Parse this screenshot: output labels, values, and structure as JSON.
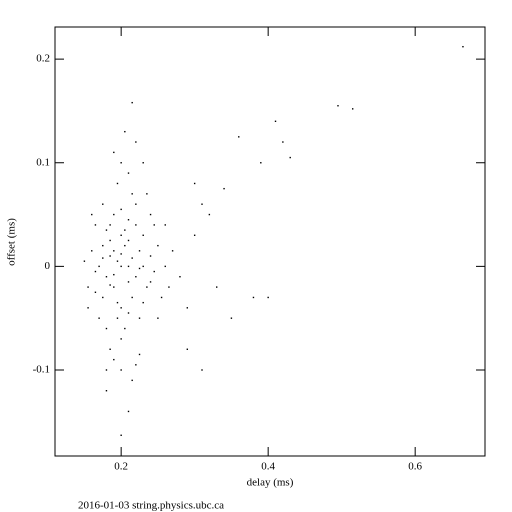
{
  "chart_data": {
    "type": "scatter",
    "xlabel": "delay (ms)",
    "ylabel": "offset (ms)",
    "footer": "2016-01-03 string.physics.ubc.ca",
    "color": "#000000",
    "xlim": [
      0.11,
      0.695
    ],
    "ylim": [
      -0.183,
      0.231
    ],
    "xticks": [
      0.2,
      0.4,
      0.6
    ],
    "yticks": [
      -0.1,
      0,
      0.1,
      0.2
    ],
    "x": [
      0.185,
      0.19,
      0.2,
      0.21,
      0.22,
      0.205,
      0.215,
      0.195,
      0.225,
      0.18,
      0.17,
      0.175,
      0.165,
      0.23,
      0.235,
      0.24,
      0.245,
      0.25,
      0.2,
      0.21,
      0.19,
      0.22,
      0.205,
      0.215,
      0.2,
      0.185,
      0.225,
      0.195,
      0.21,
      0.23,
      0.18,
      0.175,
      0.16,
      0.155,
      0.15,
      0.255,
      0.26,
      0.27,
      0.28,
      0.195,
      0.21,
      0.2,
      0.22,
      0.205,
      0.19,
      0.2,
      0.215,
      0.185,
      0.225,
      0.175,
      0.24,
      0.245,
      0.235,
      0.17,
      0.165,
      0.18,
      0.25,
      0.19,
      0.2,
      0.21,
      0.2,
      0.19,
      0.215,
      0.225,
      0.185,
      0.205,
      0.195,
      0.23,
      0.175,
      0.24,
      0.165,
      0.2,
      0.21,
      0.185,
      0.22,
      0.19,
      0.23,
      0.18,
      0.22,
      0.16,
      0.155,
      0.26,
      0.265,
      0.3,
      0.32,
      0.33,
      0.29,
      0.31,
      0.665,
      0.495,
      0.515,
      0.41,
      0.43,
      0.42,
      0.39,
      0.36,
      0.3,
      0.34,
      0.35,
      0.31,
      0.38,
      0.4,
      0.29,
      0.2,
      0.21,
      0.215,
      0.18
    ],
    "values": [
      0.01,
      -0.02,
      0.03,
      0.0,
      -0.01,
      0.02,
      -0.03,
      0.005,
      0.015,
      -0.01,
      0.0,
      0.02,
      -0.005,
      0.03,
      -0.02,
      0.01,
      -0.005,
      0.02,
      -0.04,
      0.045,
      0.05,
      0.06,
      -0.06,
      0.07,
      -0.07,
      0.04,
      -0.05,
      -0.035,
      0.025,
      -0.035,
      0.035,
      -0.03,
      0.015,
      -0.02,
      0.005,
      -0.03,
      0.0,
      0.015,
      -0.01,
      0.08,
      0.09,
      0.1,
      0.12,
      0.13,
      -0.09,
      -0.1,
      -0.11,
      -0.08,
      -0.085,
      0.06,
      0.05,
      0.04,
      0.07,
      -0.05,
      0.04,
      -0.06,
      -0.05,
      0.015,
      0.0,
      -0.015,
      0.012,
      -0.008,
      0.008,
      -0.002,
      -0.018,
      0.035,
      -0.05,
      0.0,
      0.008,
      -0.015,
      -0.025,
      0.055,
      -0.045,
      0.025,
      0.04,
      0.11,
      0.1,
      -0.1,
      -0.095,
      0.05,
      -0.04,
      0.04,
      -0.02,
      0.03,
      0.05,
      -0.02,
      -0.04,
      0.06,
      0.212,
      0.155,
      0.152,
      0.14,
      0.105,
      0.12,
      0.1,
      0.125,
      0.08,
      0.075,
      -0.05,
      -0.1,
      -0.03,
      -0.03,
      -0.08,
      -0.163,
      -0.14,
      0.158,
      -0.12
    ]
  }
}
